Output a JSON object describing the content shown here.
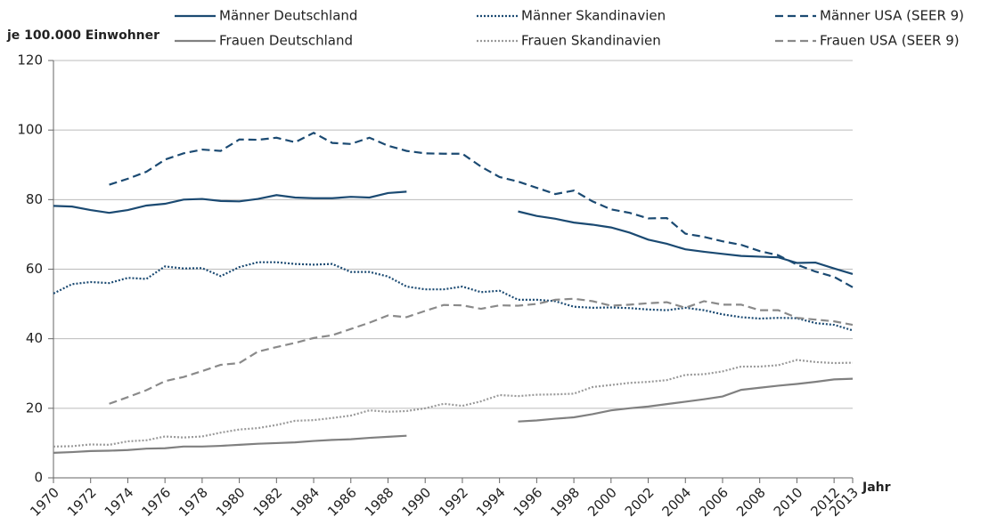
{
  "chart_data": {
    "type": "line",
    "y_label": "je 100.000 Einwohner",
    "x_label": "Jahr",
    "x": [
      1970,
      1971,
      1972,
      1973,
      1974,
      1975,
      1976,
      1977,
      1978,
      1979,
      1980,
      1981,
      1982,
      1983,
      1984,
      1985,
      1986,
      1987,
      1988,
      1989,
      1990,
      1991,
      1992,
      1993,
      1994,
      1995,
      1996,
      1997,
      1998,
      1999,
      2000,
      2001,
      2002,
      2003,
      2004,
      2005,
      2006,
      2007,
      2008,
      2009,
      2010,
      2011,
      2012,
      2013
    ],
    "xlim": [
      1970,
      2013
    ],
    "xticks": [
      1970,
      1972,
      1974,
      1976,
      1978,
      1980,
      1982,
      1984,
      1986,
      1988,
      1990,
      1992,
      1994,
      1996,
      1998,
      2000,
      2002,
      2004,
      2006,
      2008,
      2010,
      2012,
      2013
    ],
    "ylim": [
      0,
      120
    ],
    "yticks": [
      0,
      20,
      40,
      60,
      80,
      100,
      120
    ],
    "grid": true,
    "series": [
      {
        "name": "Männer Deutschland",
        "color": "#1b4a72",
        "style": "solid",
        "values": [
          78.2,
          78,
          77,
          76.2,
          77,
          78.3,
          78.8,
          80,
          80.2,
          79.6,
          79.5,
          80.2,
          81.3,
          80.6,
          80.4,
          80.4,
          80.8,
          80.6,
          81.9,
          82.3,
          null,
          null,
          null,
          null,
          null,
          76.6,
          75.3,
          74.5,
          73.4,
          72.8,
          72,
          70.5,
          68.5,
          67.3,
          65.7,
          65,
          64.4,
          63.8,
          63.6,
          63.4,
          61.8,
          61.9,
          60.2,
          58.6
        ]
      },
      {
        "name": "Männer Skandinavien",
        "color": "#1b4a72",
        "style": "dotted",
        "values": [
          53,
          55.7,
          56.3,
          56,
          57.5,
          57.2,
          60.8,
          60.2,
          60.3,
          58,
          60.6,
          62,
          62,
          61.5,
          61.3,
          61.5,
          59.2,
          59.2,
          57.9,
          55,
          54.2,
          54.2,
          55,
          53.4,
          53.8,
          51.2,
          51.2,
          50.8,
          49.2,
          48.9,
          49,
          48.8,
          48.4,
          48.2,
          48.9,
          48.2,
          47,
          46.2,
          45.8,
          46,
          45.9,
          44.5,
          44,
          42.4
        ]
      },
      {
        "name": "Männer USA (SEER 9)",
        "color": "#1b4a72",
        "style": "dashed",
        "values": [
          null,
          null,
          null,
          84.3,
          86,
          88,
          91.5,
          93.3,
          94.4,
          94,
          97.3,
          97.2,
          97.8,
          96.5,
          99.2,
          96.3,
          96,
          97.8,
          95.5,
          94,
          93.3,
          93.2,
          93.2,
          89.5,
          86.5,
          85.2,
          83.4,
          81.6,
          82.6,
          79.5,
          77.2,
          76.2,
          74.6,
          74.7,
          70.2,
          69.3,
          68,
          67,
          65.2,
          64,
          61.3,
          59.3,
          57.8,
          54.8
        ]
      },
      {
        "name": "Frauen Deutschland",
        "color": "#808080",
        "style": "solid",
        "values": [
          7.2,
          7.4,
          7.7,
          7.8,
          8,
          8.4,
          8.5,
          9,
          9,
          9.2,
          9.5,
          9.8,
          10,
          10.2,
          10.6,
          10.9,
          11.1,
          11.5,
          11.8,
          12.1,
          null,
          null,
          null,
          null,
          null,
          16.2,
          16.5,
          17,
          17.4,
          18.3,
          19.4,
          20,
          20.5,
          21.2,
          21.9,
          22.6,
          23.4,
          25.3,
          25.9,
          26.5,
          27,
          27.6,
          28.3,
          28.5
        ]
      },
      {
        "name": "Frauen Skandinavien",
        "color": "#9a9a9a",
        "style": "dotted",
        "values": [
          9,
          9.1,
          9.6,
          9.5,
          10.5,
          10.8,
          11.9,
          11.6,
          11.9,
          13,
          13.9,
          14.3,
          15.2,
          16.4,
          16.6,
          17.2,
          17.9,
          19.4,
          19,
          19.2,
          20,
          21.3,
          20.7,
          22,
          23.8,
          23.5,
          23.9,
          24,
          24.2,
          26.1,
          26.7,
          27.3,
          27.6,
          28.1,
          29.6,
          29.8,
          30.6,
          32,
          32,
          32.4,
          33.9,
          33.3,
          33,
          33.1
        ]
      },
      {
        "name": "Frauen USA (SEER 9)",
        "color": "#8a8a8a",
        "style": "dashed",
        "values": [
          null,
          null,
          null,
          21.3,
          23.2,
          25.2,
          27.8,
          29,
          30.7,
          32.5,
          33,
          36.3,
          37.6,
          38.8,
          40.2,
          41,
          42.8,
          44.6,
          46.7,
          46.2,
          48,
          49.7,
          49.6,
          48.6,
          49.6,
          49.5,
          50,
          51.2,
          51.5,
          50.8,
          49.5,
          49.8,
          50.2,
          50.5,
          48.9,
          50.8,
          49.8,
          49.8,
          48.2,
          48.2,
          46,
          45.5,
          45,
          44
        ]
      }
    ]
  }
}
